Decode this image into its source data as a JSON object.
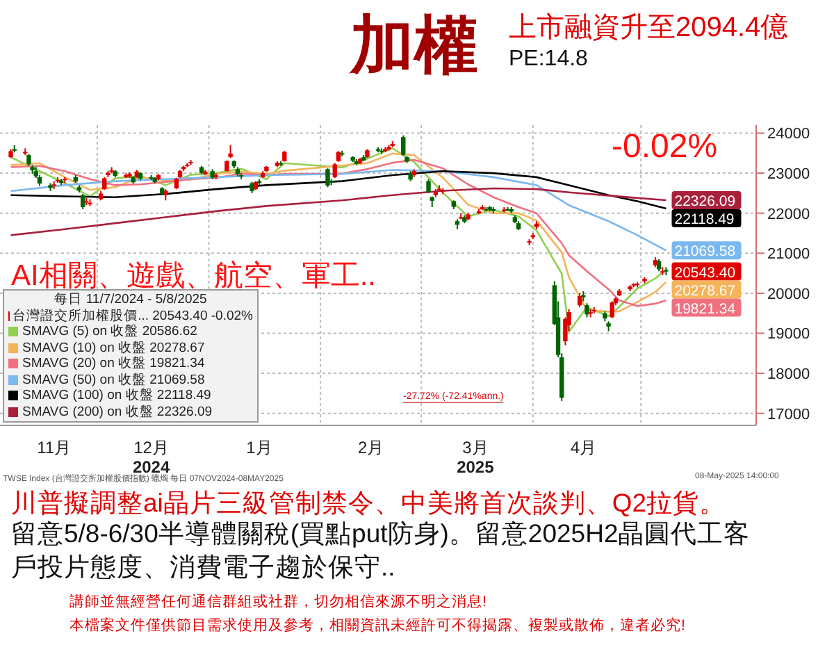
{
  "chart_data": {
    "type": "candlestick",
    "title": "加權",
    "subtitle": "上市融資升至2094.4億",
    "legend_title": "每日 11/7/2024 - 5/8/2025",
    "legend": "bottom left",
    "grid": true,
    "marker": "none",
    "xlim": [
      "2024-11-04",
      "2025-06-02"
    ],
    "xticks": [
      {
        "value": "2024-11-19",
        "label": "11月"
      },
      {
        "value": "2024-12-01",
        "label": null
      },
      {
        "value": "2024-12-16",
        "label": "12月\n2024"
      },
      {
        "value": "2025-01-01",
        "label": null
      },
      {
        "value": "2025-01-15",
        "label": "1月"
      },
      {
        "value": "2025-02-01",
        "label": null
      },
      {
        "value": "2025-02-15",
        "label": "2月"
      },
      {
        "value": "2025-03-01",
        "label": null
      },
      {
        "value": "2025-03-16",
        "label": "3月\n2025"
      },
      {
        "value": "2025-04-01",
        "label": null
      },
      {
        "value": "2025-04-15",
        "label": "4月"
      },
      {
        "value": "2025-05-01",
        "label": null
      }
    ],
    "ylim": [
      16700,
      24200
    ],
    "yticks": [
      17000,
      18000,
      19000,
      20000,
      21000,
      22000,
      23000,
      24000
    ],
    "annotations": [
      "-0.02%",
      "AI相關、遊戲、航空、軍工..",
      "-27.72% (-72.41%ann.)",
      {
        "text": "20543.40",
        "x": "2025-05-08",
        "y": 20543.4
      },
      "TWSE Index (台灣證交所加權股價指數) 蠟燭 每日 07NOV2024-08MAY2025",
      "08-May-2025 14:00:00",
      "川普擬調整ai晶片三級管制禁令、中美將首次談判、Q2拉貨。",
      "留意5/8-6/30半導體關稅(買點put防身)。留意2025H2晶圓代工客戶投片態度、消費電子趨於保守..",
      "講師並無經營任何通信群組或社群，切勿相信來源不明之消息!",
      "本檔案文件僅供節目需求使用及參考，相關資訊未經許可不得揭露、複製或散佈，違者必究!",
      "PE:14.8"
    ],
    "series": [
      {
        "name": "台灣證交所加權股價... 20543.40 -0.02%",
        "colors": [
          "#e00000",
          "#006400",
          "#e00000",
          "#006400",
          "#006400",
          "#006400",
          "#006400",
          "#006400",
          "#e00000",
          "#e00000",
          "#006400",
          "#e00000",
          "#006400",
          "#006400",
          "#006400",
          "#e00000",
          "#e00000",
          "#e00000",
          "#e00000",
          "#e00000",
          "#e00000",
          "#006400",
          "#e00000",
          "#e00000",
          "#006400",
          "#e00000",
          "#006400",
          "#006400",
          "#006400",
          "#e00000",
          "#006400",
          "#e00000",
          "#e00000",
          "#e00000",
          "#e00000",
          "#e00000",
          "#e00000",
          "#006400",
          "#e00000",
          "#006400",
          "#e00000",
          "#e00000",
          "#e00000",
          "#006400",
          "#006400",
          "#006400",
          "#006400",
          "#e00000",
          "#006400",
          "#e00000",
          "#e00000",
          "#e00000",
          "#006400",
          "#e00000",
          "#006400",
          "#006400",
          "#e00000",
          "#e00000",
          "#006400",
          "#006400",
          "#006400",
          "#e00000",
          "#006400",
          "#e00000",
          "#006400",
          "#006400",
          "#e00000",
          "#e00000",
          "#e00000",
          "#006400",
          "#006400",
          "#006400",
          "#e00000",
          "#006400",
          "#006400",
          "#e00000",
          "#e00000",
          "#e00000",
          "#006400",
          "#006400",
          "#e00000",
          "#006400",
          "#e00000",
          "#e00000",
          "#e00000",
          "#006400",
          "#006400",
          "#006400",
          "#e00000",
          "#006400",
          "#006400",
          "#006400",
          "#006400",
          "#e00000",
          "#e00000",
          "#e00000",
          "#006400",
          "#006400",
          "#006400",
          "#e00000",
          "#e00000",
          "#e00000",
          "#006400",
          "#006400",
          "#e00000",
          "#e00000",
          "#006400",
          "#006400",
          "#e00000",
          "#e00000",
          "#e00000",
          "#e00000",
          "#e00000",
          "#e00000",
          "#e00000",
          "#e00000",
          "#006400",
          "#e00000",
          "#006400"
        ],
        "x": [
          "2024-11-07",
          "2024-11-08",
          "2024-11-11",
          "2024-11-12",
          "2024-11-13",
          "2024-11-14",
          "2024-11-15",
          "2024-11-18",
          "2024-11-19",
          "2024-11-20",
          "2024-11-21",
          "2024-11-22",
          "2024-11-25",
          "2024-11-26",
          "2024-11-27",
          "2024-11-28",
          "2024-11-29",
          "2024-12-02",
          "2024-12-03",
          "2024-12-04",
          "2024-12-05",
          "2024-12-06",
          "2024-12-09",
          "2024-12-10",
          "2024-12-11",
          "2024-12-12",
          "2024-12-13",
          "2024-12-16",
          "2024-12-17",
          "2024-12-18",
          "2024-12-19",
          "2024-12-20",
          "2024-12-23",
          "2024-12-24",
          "2024-12-25",
          "2024-12-26",
          "2024-12-27",
          "2024-12-30",
          "2024-12-31",
          "2025-01-02",
          "2025-01-03",
          "2025-01-06",
          "2025-01-07",
          "2025-01-08",
          "2025-01-09",
          "2025-01-10",
          "2025-01-13",
          "2025-01-14",
          "2025-01-15",
          "2025-01-16",
          "2025-01-17",
          "2025-01-20",
          "2025-01-21",
          "2025-01-22",
          "2025-02-03",
          "2025-02-04",
          "2025-02-05",
          "2025-02-06",
          "2025-02-07",
          "2025-02-10",
          "2025-02-11",
          "2025-02-12",
          "2025-02-13",
          "2025-02-14",
          "2025-02-17",
          "2025-02-18",
          "2025-02-19",
          "2025-02-20",
          "2025-02-21",
          "2025-02-24",
          "2025-02-25",
          "2025-02-26",
          "2025-02-27",
          "2025-03-03",
          "2025-03-04",
          "2025-03-05",
          "2025-03-06",
          "2025-03-07",
          "2025-03-10",
          "2025-03-11",
          "2025-03-12",
          "2025-03-13",
          "2025-03-14",
          "2025-03-17",
          "2025-03-18",
          "2025-03-19",
          "2025-03-20",
          "2025-03-21",
          "2025-03-24",
          "2025-03-25",
          "2025-03-26",
          "2025-03-27",
          "2025-03-28",
          "2025-03-31",
          "2025-04-01",
          "2025-04-02",
          "2025-04-07",
          "2025-04-08",
          "2025-04-09",
          "2025-04-10",
          "2025-04-11",
          "2025-04-14",
          "2025-04-15",
          "2025-04-16",
          "2025-04-17",
          "2025-04-18",
          "2025-04-21",
          "2025-04-22",
          "2025-04-23",
          "2025-04-24",
          "2025-04-25",
          "2025-04-28",
          "2025-04-29",
          "2025-04-30",
          "2025-05-02",
          "2025-05-05",
          "2025-05-06",
          "2025-05-07",
          "2025-05-08"
        ],
        "ohlc": [
          [
            23400,
            23600,
            23380,
            23550
          ],
          [
            23600,
            23700,
            23520,
            23560
          ],
          [
            23520,
            23620,
            23450,
            23530
          ],
          [
            23450,
            23480,
            23180,
            23220
          ],
          [
            23150,
            23200,
            22980,
            23070
          ],
          [
            23050,
            23150,
            22880,
            22920
          ],
          [
            22900,
            22950,
            22680,
            22740
          ],
          [
            22700,
            22750,
            22550,
            22630
          ],
          [
            22700,
            22800,
            22600,
            22720
          ],
          [
            22800,
            22900,
            22760,
            22830
          ],
          [
            22820,
            22850,
            22700,
            22760
          ],
          [
            22850,
            22900,
            22750,
            22860
          ],
          [
            22900,
            22950,
            22760,
            22790
          ],
          [
            22650,
            22700,
            22520,
            22570
          ],
          [
            22450,
            22480,
            22100,
            22150
          ],
          [
            22300,
            22380,
            22200,
            22300
          ],
          [
            22220,
            22350,
            22180,
            22260
          ],
          [
            22350,
            22550,
            22320,
            22490
          ],
          [
            22600,
            22900,
            22580,
            22870
          ],
          [
            22950,
            23050,
            22900,
            23010
          ],
          [
            23050,
            23150,
            23000,
            23070
          ],
          [
            23050,
            23080,
            22900,
            22930
          ],
          [
            22900,
            23000,
            22880,
            22950
          ],
          [
            22920,
            23020,
            22880,
            22980
          ],
          [
            22900,
            22920,
            22740,
            22770
          ],
          [
            22900,
            23080,
            22880,
            23040
          ],
          [
            23000,
            23020,
            22820,
            22860
          ],
          [
            22900,
            22950,
            22830,
            22890
          ],
          [
            22880,
            22900,
            22750,
            22780
          ],
          [
            22850,
            22980,
            22820,
            22950
          ],
          [
            22620,
            22650,
            22450,
            22500
          ],
          [
            22450,
            22600,
            22320,
            22560
          ],
          [
            22620,
            22880,
            22600,
            22860
          ],
          [
            22900,
            23080,
            22880,
            23050
          ],
          [
            23100,
            23180,
            23050,
            23160
          ],
          [
            23180,
            23250,
            23150,
            23210
          ],
          [
            23250,
            23330,
            23200,
            23280
          ],
          [
            23150,
            23180,
            22980,
            23000
          ],
          [
            22980,
            23080,
            22950,
            23040
          ],
          [
            23050,
            23100,
            22850,
            22890
          ],
          [
            22900,
            23000,
            22850,
            22950
          ],
          [
            23050,
            23320,
            23050,
            23300
          ],
          [
            23400,
            23700,
            23380,
            23490
          ],
          [
            23300,
            23320,
            23120,
            23170
          ],
          [
            23100,
            23150,
            22920,
            22970
          ],
          [
            22950,
            23000,
            22850,
            22920
          ],
          [
            22750,
            22780,
            22500,
            22550
          ],
          [
            22600,
            22800,
            22580,
            22780
          ],
          [
            22800,
            22850,
            22700,
            22750
          ],
          [
            22900,
            23050,
            22880,
            23000
          ],
          [
            23050,
            23180,
            23030,
            23160
          ],
          [
            23180,
            23300,
            23150,
            23260
          ],
          [
            23250,
            23300,
            23180,
            23220
          ],
          [
            23300,
            23560,
            23290,
            23530
          ],
          [
            23100,
            23120,
            22650,
            22690
          ],
          [
            22800,
            22850,
            22700,
            22780
          ],
          [
            22900,
            23250,
            22880,
            23220
          ],
          [
            23300,
            23550,
            23280,
            23530
          ],
          [
            23500,
            23560,
            23420,
            23480
          ],
          [
            23400,
            23420,
            23280,
            23310
          ],
          [
            23300,
            23350,
            23200,
            23230
          ],
          [
            23250,
            23380,
            23230,
            23350
          ],
          [
            23400,
            23450,
            23300,
            23320
          ],
          [
            23400,
            23600,
            23380,
            23570
          ],
          [
            23600,
            23650,
            23520,
            23560
          ],
          [
            23560,
            23620,
            23480,
            23530
          ],
          [
            23550,
            23650,
            23530,
            23600
          ],
          [
            23600,
            23700,
            23570,
            23650
          ],
          [
            23680,
            23800,
            23650,
            23730
          ],
          [
            23900,
            23944,
            23430,
            23460
          ],
          [
            23400,
            23420,
            23250,
            23290
          ],
          [
            23000,
            23050,
            22800,
            22840
          ],
          [
            22950,
            23100,
            22900,
            23050
          ],
          [
            22800,
            22850,
            22500,
            22530
          ],
          [
            22400,
            22420,
            22150,
            22310
          ],
          [
            22450,
            22600,
            22400,
            22530
          ],
          [
            22600,
            22700,
            22550,
            22610
          ],
          [
            22550,
            22620,
            22480,
            22580
          ],
          [
            22300,
            22320,
            22100,
            22160
          ],
          [
            21800,
            21850,
            21600,
            21710
          ],
          [
            21900,
            22000,
            21850,
            21900
          ],
          [
            21900,
            21950,
            21750,
            21790
          ],
          [
            21850,
            22000,
            21820,
            21970
          ],
          [
            22000,
            22100,
            21980,
            22050
          ],
          [
            22100,
            22200,
            22080,
            22150
          ],
          [
            22100,
            22150,
            22050,
            22090
          ],
          [
            22150,
            22180,
            22050,
            22080
          ],
          [
            22100,
            22150,
            22000,
            22050
          ],
          [
            22050,
            22150,
            22020,
            22090
          ],
          [
            22100,
            22150,
            22050,
            22090
          ],
          [
            22100,
            22150,
            22000,
            22040
          ],
          [
            21900,
            21950,
            21750,
            21780
          ],
          [
            21750,
            21800,
            21580,
            21600
          ],
          [
            21300,
            21350,
            21200,
            21300
          ],
          [
            21400,
            21500,
            21350,
            21450
          ],
          [
            21650,
            21800,
            21600,
            21740
          ],
          [
            20200,
            20300,
            19200,
            19230
          ],
          [
            19400,
            19800,
            18400,
            18460
          ],
          [
            18400,
            18500,
            17310,
            17390
          ],
          [
            18800,
            19400,
            18700,
            19360
          ],
          [
            19200,
            19600,
            19050,
            19530
          ],
          [
            19700,
            20000,
            19650,
            19930
          ],
          [
            19950,
            20050,
            19800,
            19900
          ],
          [
            19700,
            19750,
            19400,
            19470
          ],
          [
            19500,
            19600,
            19400,
            19530
          ],
          [
            19580,
            19650,
            19500,
            19580
          ],
          [
            19500,
            19550,
            19300,
            19370
          ],
          [
            19250,
            19300,
            19050,
            19170
          ],
          [
            19400,
            19800,
            19380,
            19770
          ],
          [
            19750,
            19900,
            19700,
            19870
          ],
          [
            19950,
            20100,
            19930,
            20060
          ],
          [
            20100,
            20200,
            20050,
            20170
          ],
          [
            20200,
            20250,
            20150,
            20230
          ],
          [
            20200,
            20280,
            20150,
            20240
          ],
          [
            20300,
            20400,
            20250,
            20360
          ],
          [
            20700,
            20900,
            20650,
            20830
          ],
          [
            20800,
            20850,
            20550,
            20600
          ],
          [
            20550,
            20650,
            20450,
            20550
          ],
          [
            20580,
            20650,
            20450,
            20543.4
          ]
        ]
      },
      {
        "type": "line",
        "name": "SMAVG (5) on 收盤 20586.62",
        "color": "#92cf50",
        "x": [
          "2024-11-07",
          "2024-11-15",
          "2024-11-22",
          "2024-11-29",
          "2024-12-06",
          "2024-12-13",
          "2024-12-20",
          "2024-12-27",
          "2025-01-03",
          "2025-01-10",
          "2025-01-17",
          "2025-01-22",
          "2025-02-07",
          "2025-02-14",
          "2025-02-21",
          "2025-02-27",
          "2025-03-07",
          "2025-03-14",
          "2025-03-21",
          "2025-03-28",
          "2025-04-02",
          "2025-04-09",
          "2025-04-11",
          "2025-04-16",
          "2025-04-22",
          "2025-04-25",
          "2025-04-30",
          "2025-05-05",
          "2025-05-08"
        ],
        "values": [
          23400,
          23050,
          22750,
          22420,
          22870,
          22930,
          22700,
          22960,
          23000,
          23110,
          22850,
          23250,
          23140,
          23360,
          23620,
          23280,
          22510,
          21920,
          22080,
          21920,
          21570,
          20490,
          19040,
          19650,
          19430,
          19660,
          20120,
          20370,
          20586.62
        ]
      },
      {
        "type": "line",
        "name": "SMAVG (10) on 收盤 20278.67",
        "color": "#f5b35a",
        "x": [
          "2024-11-07",
          "2024-11-15",
          "2024-11-22",
          "2024-11-29",
          "2024-12-06",
          "2024-12-13",
          "2024-12-20",
          "2024-12-27",
          "2025-01-03",
          "2025-01-10",
          "2025-01-17",
          "2025-01-22",
          "2025-02-07",
          "2025-02-14",
          "2025-02-21",
          "2025-02-27",
          "2025-03-07",
          "2025-03-14",
          "2025-03-21",
          "2025-03-28",
          "2025-04-02",
          "2025-04-09",
          "2025-04-11",
          "2025-04-16",
          "2025-04-22",
          "2025-04-25",
          "2025-04-30",
          "2025-05-05",
          "2025-05-08"
        ],
        "values": [
          23200,
          23250,
          22900,
          22580,
          22650,
          22900,
          22810,
          22840,
          22980,
          23040,
          22980,
          23060,
          23190,
          23250,
          23490,
          23450,
          22890,
          22210,
          22000,
          22000,
          21820,
          21020,
          20400,
          19580,
          19540,
          19550,
          19780,
          20030,
          20278.67
        ],
        "value_labels": [
          null,
          null,
          null,
          null,
          null,
          null,
          null,
          null,
          null,
          null,
          null,
          null,
          null,
          null,
          null,
          null,
          null,
          null,
          null,
          null,
          null,
          null,
          null,
          null,
          null,
          null,
          null,
          null,
          "20278.67"
        ]
      },
      {
        "type": "line",
        "name": "SMAVG (20) on 收盤 19821.34",
        "color": "#f0707f",
        "x": [
          "2024-11-07",
          "2024-11-15",
          "2024-11-22",
          "2024-11-29",
          "2024-12-06",
          "2024-12-13",
          "2024-12-20",
          "2024-12-27",
          "2025-01-03",
          "2025-01-10",
          "2025-01-17",
          "2025-01-22",
          "2025-02-07",
          "2025-02-14",
          "2025-02-21",
          "2025-02-27",
          "2025-03-07",
          "2025-03-14",
          "2025-03-21",
          "2025-03-28",
          "2025-04-02",
          "2025-04-09",
          "2025-04-11",
          "2025-04-16",
          "2025-04-22",
          "2025-04-25",
          "2025-04-30",
          "2025-05-05",
          "2025-05-08"
        ],
        "values": [
          23150,
          23180,
          23050,
          22850,
          22700,
          22720,
          22780,
          22850,
          22880,
          22990,
          22950,
          22980,
          22990,
          23100,
          23260,
          23330,
          23120,
          22720,
          22400,
          22150,
          22000,
          21250,
          20950,
          20550,
          20100,
          19820,
          19680,
          19740,
          19821.34
        ],
        "value_labels": [
          null,
          null,
          null,
          null,
          null,
          null,
          null,
          null,
          null,
          null,
          null,
          null,
          null,
          null,
          null,
          null,
          null,
          null,
          null,
          null,
          null,
          null,
          null,
          null,
          null,
          null,
          null,
          null,
          "19821.34"
        ]
      },
      {
        "type": "line",
        "name": "SMAVG (50) on 收盤 21069.58",
        "color": "#7ab8f0",
        "x": [
          "2024-11-07",
          "2024-11-22",
          "2024-12-06",
          "2024-12-20",
          "2025-01-03",
          "2025-01-17",
          "2025-02-07",
          "2025-02-21",
          "2025-03-07",
          "2025-03-21",
          "2025-04-02",
          "2025-04-11",
          "2025-04-22",
          "2025-04-30",
          "2025-05-08"
        ],
        "values": [
          22550,
          22700,
          22800,
          22850,
          22900,
          22950,
          22980,
          23080,
          23050,
          22900,
          22700,
          22200,
          21800,
          21450,
          21069.58
        ],
        "value_labels": [
          null,
          null,
          null,
          null,
          null,
          null,
          null,
          null,
          null,
          null,
          null,
          null,
          null,
          null,
          "21069.58"
        ]
      },
      {
        "type": "line",
        "name": "SMAVG (100) on 收盤 22118.49",
        "color": "#000000",
        "x": [
          "2024-11-07",
          "2024-11-22",
          "2024-12-06",
          "2024-12-20",
          "2025-01-03",
          "2025-01-17",
          "2025-02-07",
          "2025-02-21",
          "2025-03-07",
          "2025-03-21",
          "2025-04-02",
          "2025-04-11",
          "2025-04-22",
          "2025-04-30",
          "2025-05-08"
        ],
        "values": [
          22450,
          22420,
          22400,
          22480,
          22600,
          22700,
          22800,
          22950,
          23050,
          23000,
          22900,
          22700,
          22450,
          22300,
          22118.49
        ],
        "value_labels": [
          null,
          null,
          null,
          null,
          null,
          null,
          null,
          null,
          null,
          null,
          null,
          null,
          null,
          null,
          "22118.49"
        ]
      },
      {
        "type": "line",
        "name": "SMAVG (200) on 收盤 22326.09",
        "color": "#a8203c",
        "x": [
          "2024-11-07",
          "2024-11-22",
          "2024-12-06",
          "2024-12-20",
          "2025-01-03",
          "2025-01-17",
          "2025-02-07",
          "2025-02-21",
          "2025-03-07",
          "2025-03-21",
          "2025-04-02",
          "2025-04-11",
          "2025-04-22",
          "2025-04-30",
          "2025-05-08"
        ],
        "values": [
          21450,
          21600,
          21750,
          21900,
          22050,
          22180,
          22320,
          22450,
          22560,
          22620,
          22600,
          22520,
          22440,
          22380,
          22326.09
        ],
        "value_labels": [
          null,
          null,
          null,
          null,
          null,
          null,
          null,
          null,
          null,
          null,
          null,
          null,
          null,
          null,
          "22326.09"
        ]
      }
    ]
  }
}
